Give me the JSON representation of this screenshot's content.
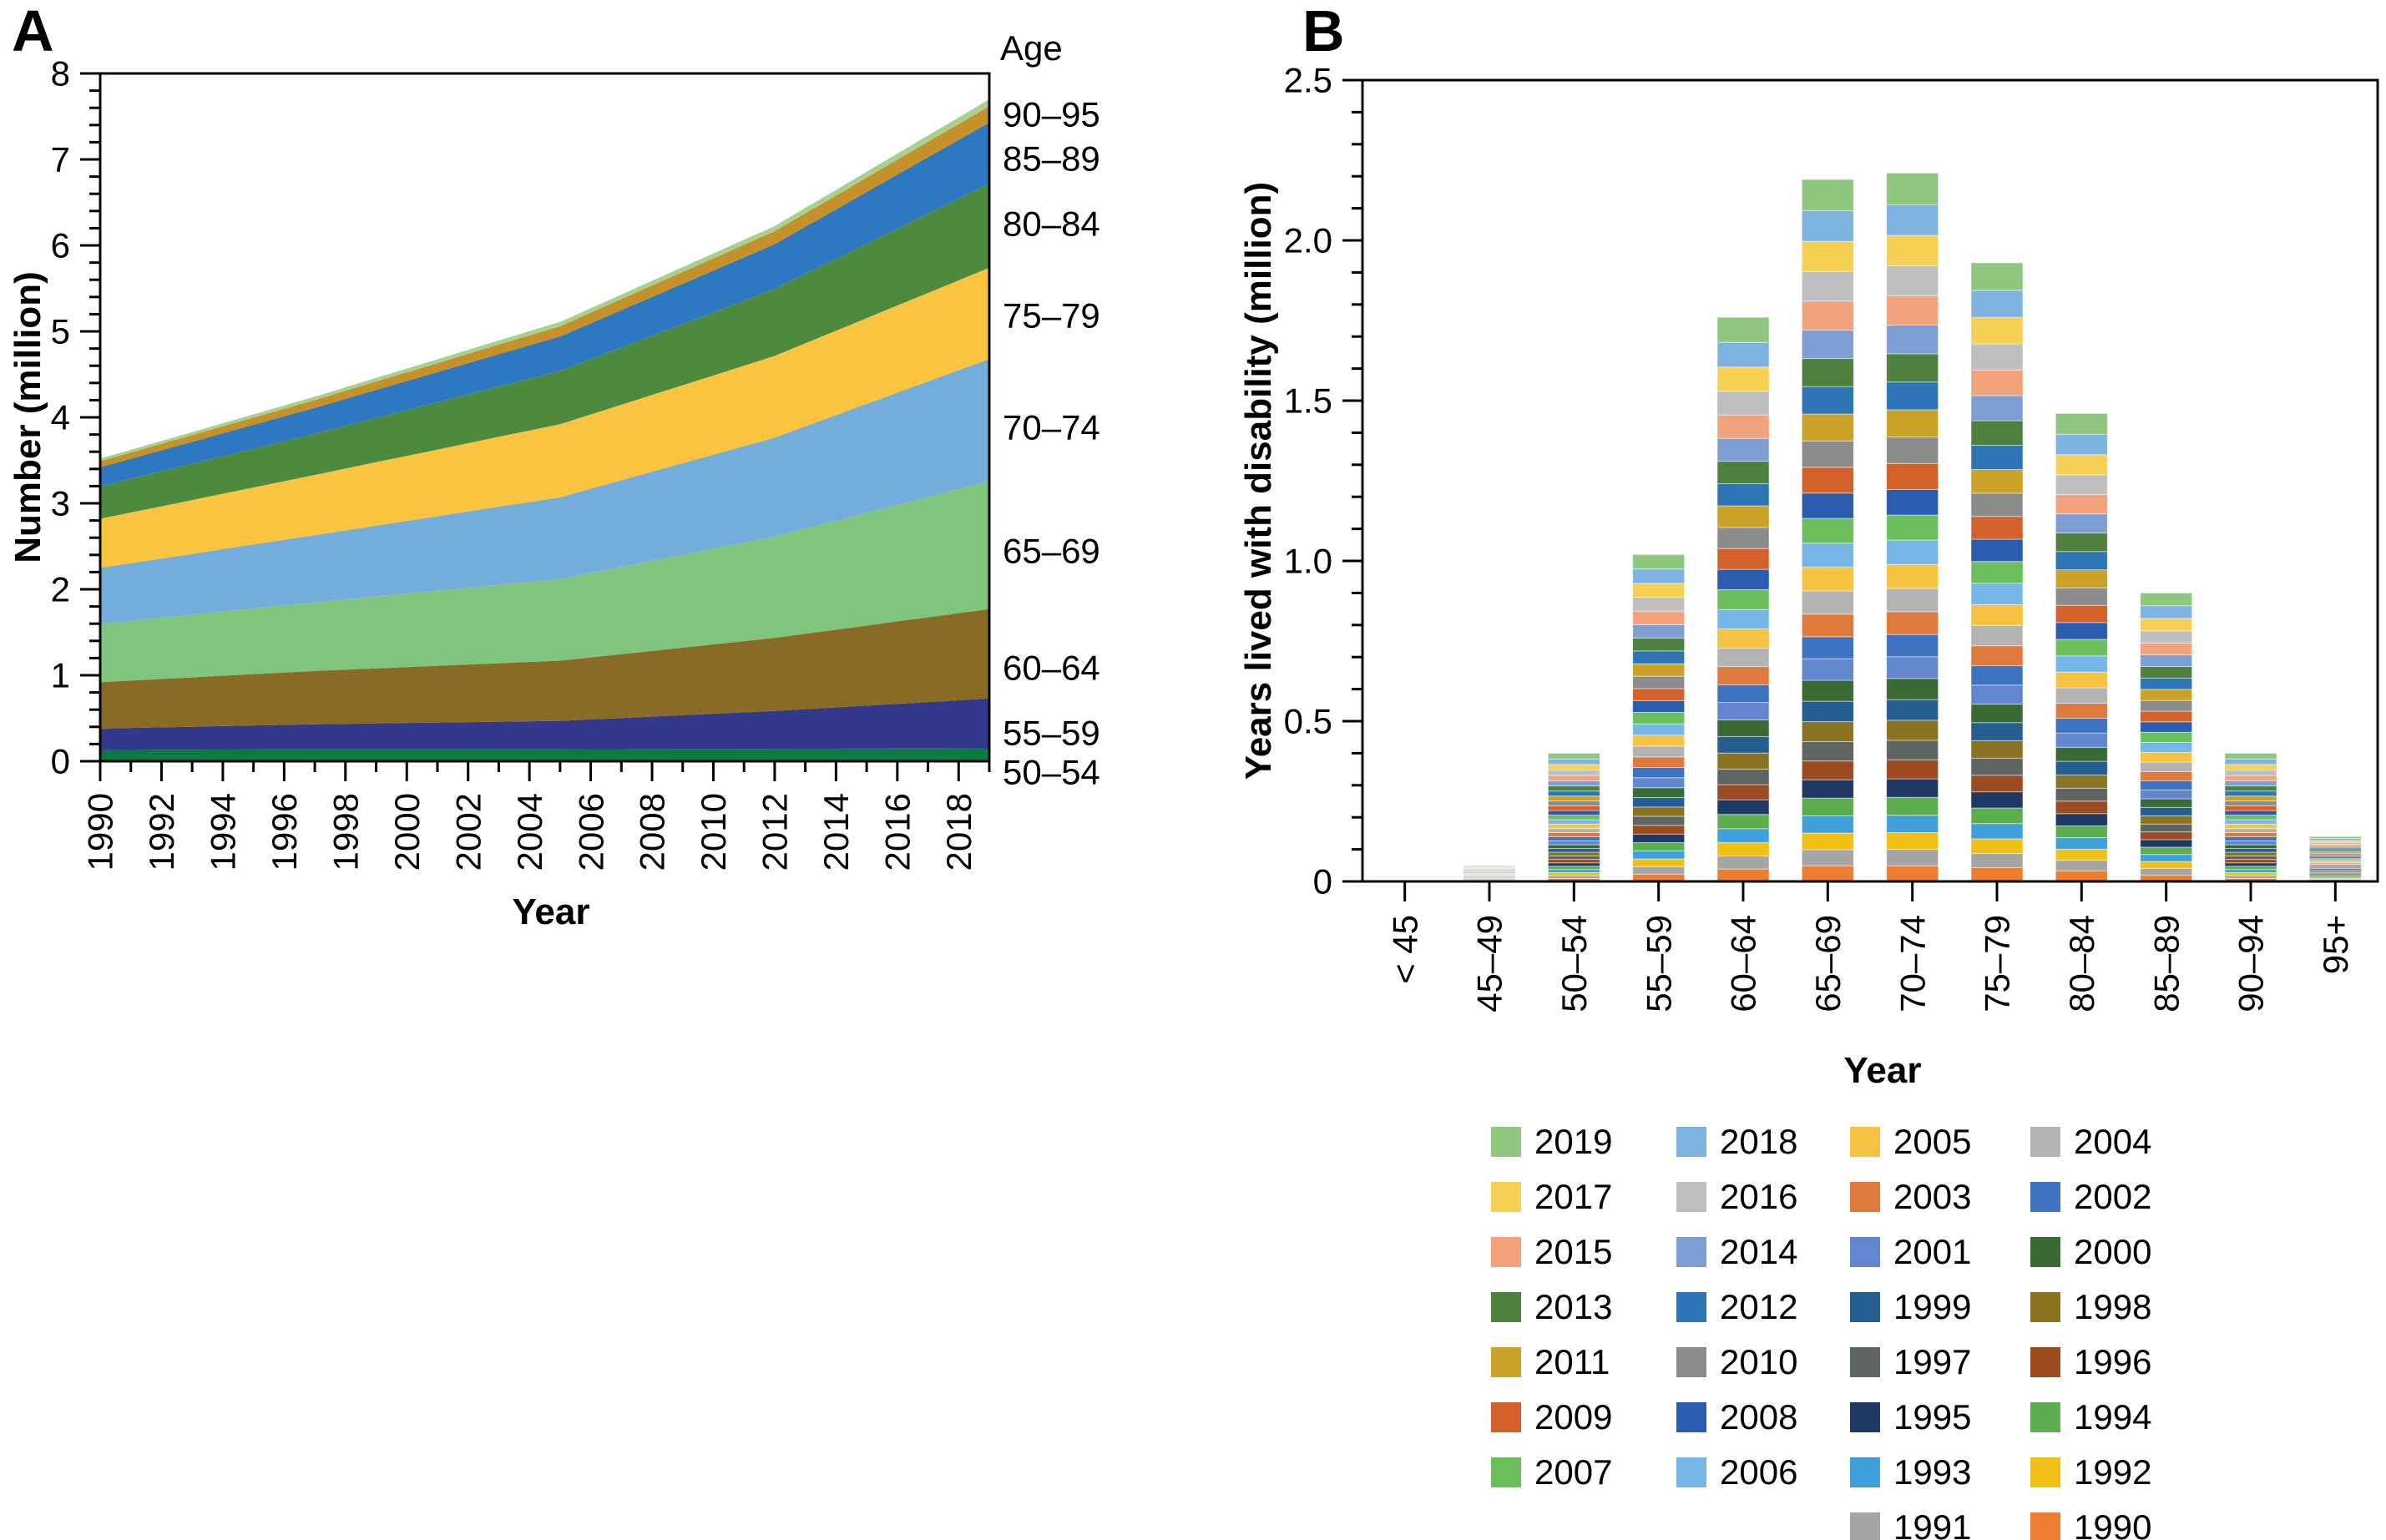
{
  "figure": {
    "panel_a_letter": "A",
    "panel_b_letter": "B"
  },
  "panel_a": {
    "xlabel": "Year",
    "ylabel": "Number (million)",
    "age_header": "Age"
  },
  "panel_b": {
    "xlabel": "Year",
    "ylabel": "Years lived with disability (million)"
  },
  "chart_data": [
    {
      "type": "area",
      "panel": "A",
      "xlabel": "Year",
      "ylabel": "Number (million)",
      "x": [
        1990,
        1991,
        1992,
        1993,
        1994,
        1995,
        1996,
        1997,
        1998,
        1999,
        2000,
        2001,
        2002,
        2003,
        2004,
        2005,
        2006,
        2007,
        2008,
        2009,
        2010,
        2011,
        2012,
        2013,
        2014,
        2015,
        2016,
        2017,
        2018,
        2019
      ],
      "xtick_labels": [
        "1990",
        "1992",
        "1994",
        "1996",
        "1998",
        "2000",
        "2002",
        "2004",
        "2006",
        "2008",
        "2010",
        "2012",
        "2014",
        "2016",
        "2018"
      ],
      "ylim": [
        0,
        8
      ],
      "ytick_labels": [
        "0",
        "1",
        "2",
        "3",
        "4",
        "5",
        "6",
        "7",
        "8"
      ],
      "right_label_header": "Age",
      "legend_position": "right",
      "grid": false,
      "series": [
        {
          "name": "50–54",
          "color": "#0B7A42",
          "values": [
            0.13,
            0.131,
            0.133,
            0.134,
            0.136,
            0.137,
            0.139,
            0.14,
            0.14,
            0.14,
            0.14,
            0.14,
            0.14,
            0.14,
            0.14,
            0.14,
            0.141,
            0.141,
            0.142,
            0.143,
            0.143,
            0.144,
            0.145,
            0.146,
            0.146,
            0.147,
            0.148,
            0.148,
            0.149,
            0.15
          ]
        },
        {
          "name": "55–59",
          "color": "#32398B",
          "values": [
            0.25,
            0.256,
            0.261,
            0.267,
            0.273,
            0.279,
            0.284,
            0.29,
            0.295,
            0.3,
            0.305,
            0.31,
            0.315,
            0.32,
            0.325,
            0.33,
            0.346,
            0.361,
            0.377,
            0.393,
            0.409,
            0.424,
            0.44,
            0.46,
            0.48,
            0.5,
            0.52,
            0.54,
            0.56,
            0.58
          ]
        },
        {
          "name": "60–64",
          "color": "#8A6B25",
          "values": [
            0.54,
            0.551,
            0.563,
            0.574,
            0.586,
            0.597,
            0.609,
            0.62,
            0.63,
            0.64,
            0.65,
            0.66,
            0.67,
            0.68,
            0.69,
            0.7,
            0.721,
            0.743,
            0.764,
            0.786,
            0.807,
            0.829,
            0.85,
            0.877,
            0.904,
            0.931,
            0.959,
            0.986,
            1.013,
            1.04
          ]
        },
        {
          "name": "65–69",
          "color": "#7FC57E",
          "values": [
            0.68,
            0.697,
            0.714,
            0.731,
            0.749,
            0.766,
            0.783,
            0.8,
            0.819,
            0.838,
            0.856,
            0.875,
            0.894,
            0.913,
            0.931,
            0.95,
            0.983,
            1.016,
            1.049,
            1.081,
            1.114,
            1.147,
            1.18,
            1.224,
            1.269,
            1.313,
            1.357,
            1.401,
            1.446,
            1.49
          ]
        },
        {
          "name": "70–74",
          "color": "#73ADDC",
          "values": [
            0.65,
            0.669,
            0.687,
            0.706,
            0.724,
            0.743,
            0.761,
            0.78,
            0.801,
            0.823,
            0.844,
            0.865,
            0.886,
            0.908,
            0.929,
            0.95,
            0.979,
            1.007,
            1.036,
            1.064,
            1.093,
            1.121,
            1.15,
            1.189,
            1.227,
            1.266,
            1.304,
            1.343,
            1.381,
            1.42
          ]
        },
        {
          "name": "75–79",
          "color": "#FBC440",
          "values": [
            0.57,
            0.589,
            0.607,
            0.626,
            0.644,
            0.663,
            0.681,
            0.7,
            0.719,
            0.738,
            0.756,
            0.775,
            0.794,
            0.813,
            0.831,
            0.85,
            0.864,
            0.879,
            0.893,
            0.907,
            0.921,
            0.936,
            0.95,
            0.966,
            0.981,
            0.997,
            1.013,
            1.029,
            1.044,
            1.06
          ]
        },
        {
          "name": "80–84",
          "color": "#4E8A3E",
          "values": [
            0.38,
            0.394,
            0.409,
            0.423,
            0.437,
            0.451,
            0.466,
            0.48,
            0.498,
            0.515,
            0.533,
            0.55,
            0.568,
            0.585,
            0.603,
            0.62,
            0.643,
            0.666,
            0.689,
            0.711,
            0.734,
            0.757,
            0.78,
            0.809,
            0.837,
            0.866,
            0.894,
            0.923,
            0.951,
            0.98
          ]
        },
        {
          "name": "85–89",
          "color": "#2E78C2",
          "values": [
            0.22,
            0.231,
            0.243,
            0.254,
            0.266,
            0.277,
            0.289,
            0.3,
            0.313,
            0.325,
            0.338,
            0.35,
            0.363,
            0.375,
            0.388,
            0.4,
            0.417,
            0.434,
            0.451,
            0.469,
            0.486,
            0.503,
            0.52,
            0.547,
            0.574,
            0.601,
            0.629,
            0.656,
            0.683,
            0.71
          ]
        },
        {
          "name": "90–95",
          "color": "#C5912B",
          "values": [
            0.07,
            0.073,
            0.076,
            0.079,
            0.081,
            0.084,
            0.087,
            0.09,
            0.094,
            0.098,
            0.101,
            0.105,
            0.109,
            0.113,
            0.116,
            0.12,
            0.124,
            0.129,
            0.133,
            0.137,
            0.141,
            0.146,
            0.15,
            0.156,
            0.161,
            0.167,
            0.173,
            0.179,
            0.184,
            0.19
          ]
        },
        {
          "name": "",
          "color": "#A9D18E",
          "values": [
            0.03,
            0.031,
            0.033,
            0.034,
            0.036,
            0.037,
            0.039,
            0.04,
            0.041,
            0.043,
            0.044,
            0.045,
            0.046,
            0.048,
            0.049,
            0.05,
            0.051,
            0.053,
            0.054,
            0.056,
            0.057,
            0.059,
            0.06,
            0.063,
            0.066,
            0.069,
            0.071,
            0.074,
            0.077,
            0.08
          ]
        }
      ]
    },
    {
      "type": "stacked-bar",
      "panel": "B",
      "xlabel": "Year",
      "ylabel": "Years lived with disability (million)",
      "categories": [
        "< 45",
        "45–49",
        "50–54",
        "55–59",
        "60–64",
        "65–69",
        "70–74",
        "75–79",
        "80–84",
        "85–89",
        "90–94",
        "95+"
      ],
      "totals": [
        0.002,
        0.05,
        0.4,
        1.02,
        1.76,
        2.19,
        2.21,
        1.93,
        1.46,
        0.9,
        0.4,
        0.14
      ],
      "ylim": [
        0,
        2.5
      ],
      "ytick_labels": [
        "0",
        "0.5",
        "1.0",
        "1.5",
        "2.0",
        "2.5"
      ],
      "grid": false,
      "stack_order_bottom_to_top": [
        "1990",
        "1991",
        "1992",
        "1993",
        "1994",
        "1995",
        "1996",
        "1997",
        "1998",
        "1999",
        "2000",
        "2001",
        "2002",
        "2003",
        "2004",
        "2005",
        "2006",
        "2007",
        "2008",
        "2009",
        "2010",
        "2011",
        "2012",
        "2013",
        "2014",
        "2015",
        "2016",
        "2017",
        "2018",
        "2019"
      ]
    }
  ],
  "legend": {
    "title": "Year",
    "columns": [
      [
        "2019",
        "2017",
        "2015",
        "2013",
        "2011",
        "2009",
        "2007"
      ],
      [
        "2018",
        "2016",
        "2014",
        "2012",
        "2010",
        "2008",
        "2006"
      ],
      [
        "2005",
        "2003",
        "2001",
        "1999",
        "1997",
        "1995",
        "1993",
        "1991"
      ],
      [
        "2004",
        "2002",
        "2000",
        "1998",
        "1996",
        "1994",
        "1992",
        "1990"
      ]
    ],
    "colors": {
      "1990": "#ED7D31",
      "1991": "#A5A5A5",
      "1992": "#EFC117",
      "1993": "#41A0DC",
      "1994": "#5BAD4E",
      "1995": "#1F3864",
      "1996": "#9C4A1F",
      "1997": "#5F6562",
      "1998": "#8A7423",
      "1999": "#255E91",
      "2000": "#3B6B35",
      "2001": "#6287CE",
      "2002": "#3E73C1",
      "2003": "#DE7A3C",
      "2004": "#B3B3B3",
      "2005": "#F5C242",
      "2006": "#76B7E8",
      "2007": "#6ABE5C",
      "2008": "#2B5CAD",
      "2009": "#D2622A",
      "2010": "#8C8C8C",
      "2011": "#C9A227",
      "2012": "#2E75B6",
      "2013": "#4E8040",
      "2014": "#7E9FD3",
      "2015": "#F2A37B",
      "2016": "#BFBFBF",
      "2017": "#F6CF55",
      "2018": "#7EB3E0",
      "2019": "#90C77E"
    }
  }
}
